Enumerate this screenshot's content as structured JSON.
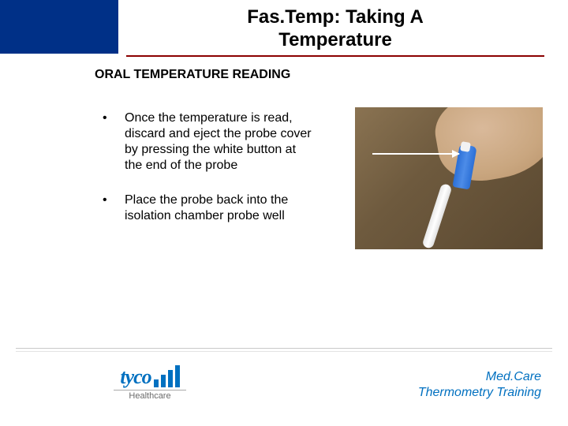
{
  "title_line1": "Fas.Temp: Taking A",
  "title_line2": "Temperature",
  "subtitle": "ORAL TEMPERATURE READING",
  "bullets": [
    "Once the temperature is read, discard and eject the probe cover by pressing the white button at the end of the probe",
    "Place the probe back into the isolation chamber probe well"
  ],
  "logo": {
    "brand": "tyco",
    "sub": "Healthcare"
  },
  "footer": {
    "line1": "Med.Care",
    "line2": "Thermometry Training"
  },
  "colors": {
    "header_block": "#003087",
    "title_underline": "#8b0000",
    "accent_blue": "#0070c0",
    "body_text": "#000000",
    "divider": "#c9c9c9",
    "healthcare_text": "#6a6a6a"
  },
  "photo": {
    "description": "Hand holding blue thermometer probe with white cover, arrow pointing to eject button",
    "background_tone": "#6e5a3e",
    "probe_handle_color": "#2b6fd6",
    "probe_stem_color": "#f0f0f0",
    "arrow_color": "#ffffff"
  },
  "typography": {
    "title_fontsize": 24,
    "subtitle_fontsize": 16,
    "body_fontsize": 16,
    "footer_fontsize": 16,
    "logo_fontsize": 26,
    "healthcare_fontsize": 11
  }
}
